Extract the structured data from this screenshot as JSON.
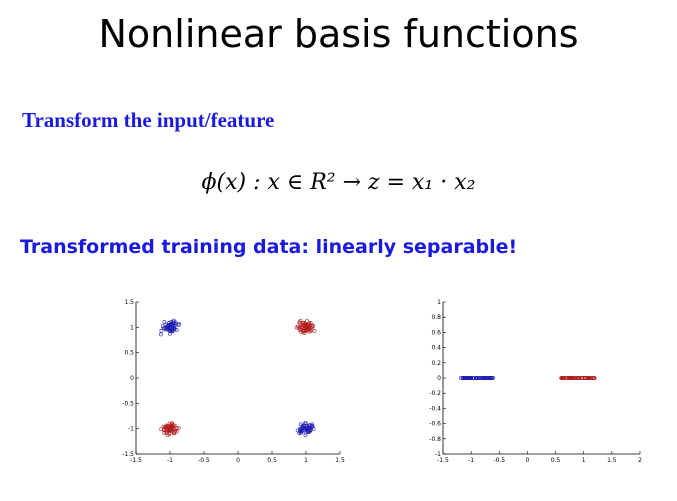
{
  "slide": {
    "title": "Nonlinear basis functions",
    "subhead_transform": "Transform the input/feature",
    "formula": "ϕ(x) : x ∈ R²  →  z  =  x₁ · x₂",
    "subhead_separable": "Transformed training data:  linearly separable!"
  },
  "chart_data": [
    {
      "type": "scatter",
      "xlim": [
        -1.5,
        1.5
      ],
      "ylim": [
        -1.5,
        1.5
      ],
      "xticks": [
        "-1.5",
        "-1",
        "-0.5",
        "0",
        "0.5",
        "1",
        "1.5"
      ],
      "yticks": [
        "1.5",
        "1",
        "0.5",
        "0",
        "-0.5",
        "-1",
        "-1.5"
      ],
      "grid": false,
      "series": [
        {
          "color": "#1f1fb0",
          "clusters": [
            [
              -1,
              1
            ],
            [
              1,
              -1
            ]
          ]
        },
        {
          "color": "#b01f1f",
          "clusters": [
            [
              1,
              1
            ],
            [
              -1,
              -1
            ]
          ]
        }
      ]
    },
    {
      "type": "scatter",
      "xlim": [
        -1.5,
        2
      ],
      "ylim": [
        -1,
        1
      ],
      "xticks": [
        "-1.5",
        "-1",
        "-0.5",
        "0",
        "0.5",
        "1",
        "1.5",
        "2"
      ],
      "yticks": [
        "1",
        "0.8",
        "0.6",
        "0.4",
        "0.2",
        "0",
        "-0.2",
        "-0.4",
        "-0.6",
        "-0.8",
        "-1"
      ],
      "grid": false,
      "series": [
        {
          "color": "#1f1fb0",
          "x_range": [
            -1.2,
            -0.6
          ],
          "y": 0
        },
        {
          "color": "#b01f1f",
          "x_range": [
            0.6,
            1.2
          ],
          "y": 0
        }
      ]
    }
  ]
}
